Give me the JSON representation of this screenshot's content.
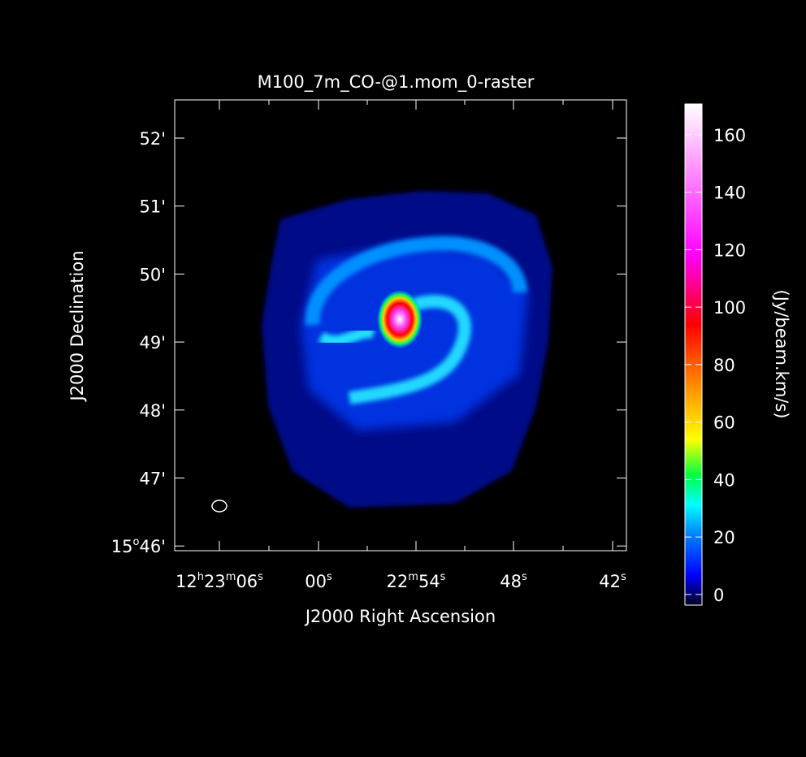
{
  "title": "M100_7m_CO-@1.mom_0-raster",
  "x_axis": {
    "label": "J2000 Right Ascension",
    "ticks": [
      [
        "12",
        "h",
        "23",
        "m",
        "06",
        "s"
      ],
      [
        "00",
        "s"
      ],
      [
        "22",
        "m",
        "54",
        "s"
      ],
      [
        "48",
        "s"
      ],
      [
        "42",
        "s"
      ]
    ]
  },
  "y_axis": {
    "label": "J2000 Declination",
    "ticks": [
      [
        "52'"
      ],
      [
        "51'"
      ],
      [
        "50'"
      ],
      [
        "49'"
      ],
      [
        "48'"
      ],
      [
        "47'"
      ],
      [
        "15",
        "o",
        "46'"
      ]
    ]
  },
  "colorbar": {
    "label": "(Jy/beam.km/s)",
    "lim": [
      -3.7,
      170.7
    ],
    "ticks": [
      0,
      20,
      40,
      60,
      80,
      100,
      120,
      140,
      160
    ]
  }
}
